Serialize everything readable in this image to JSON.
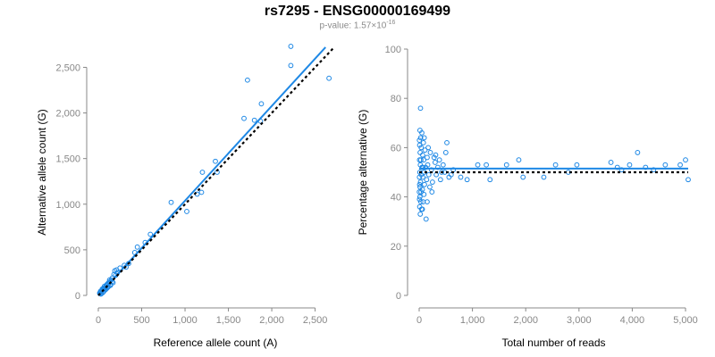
{
  "title": "rs7295 - ENSG00000169499",
  "subtitle": {
    "prefix": "p-value: 1.57×10",
    "exponent": "-16"
  },
  "colors": {
    "point": "#1E88E5",
    "fit_line": "#1E88E5",
    "reference_line": "#000000",
    "tick_label": "#888888",
    "axis": "#888888"
  },
  "chart_data": [
    {
      "type": "scatter",
      "xlabel": "Reference allele count (A)",
      "ylabel": "Alternative allele count (G)",
      "xlim": [
        0,
        2700
      ],
      "ylim": [
        0,
        2700
      ],
      "xticks": [
        0,
        500,
        1000,
        1500,
        2000,
        2500
      ],
      "xtick_labels": [
        "0",
        "500",
        "1,000",
        "1,500",
        "2,000",
        "2,500"
      ],
      "yticks": [
        0,
        500,
        1000,
        1500,
        2000,
        2500
      ],
      "ytick_labels": [
        "0",
        "500",
        "1,000",
        "1,500",
        "2,000",
        "2,500"
      ],
      "points": [
        [
          2220,
          2730
        ],
        [
          2220,
          2520
        ],
        [
          2660,
          2380
        ],
        [
          1720,
          2360
        ],
        [
          1880,
          2100
        ],
        [
          1680,
          1940
        ],
        [
          1800,
          1920
        ],
        [
          1870,
          1910
        ],
        [
          1350,
          1470
        ],
        [
          1370,
          1350
        ],
        [
          1200,
          1350
        ],
        [
          1190,
          1130
        ],
        [
          1140,
          1110
        ],
        [
          1020,
          920
        ],
        [
          840,
          1020
        ],
        [
          600,
          670
        ],
        [
          540,
          580
        ],
        [
          450,
          530
        ],
        [
          420,
          470
        ],
        [
          350,
          350
        ],
        [
          320,
          310
        ],
        [
          300,
          330
        ],
        [
          250,
          300
        ],
        [
          210,
          280
        ],
        [
          190,
          270
        ],
        [
          220,
          250
        ],
        [
          180,
          230
        ],
        [
          160,
          190
        ],
        [
          150,
          170
        ],
        [
          130,
          150
        ],
        [
          140,
          120
        ],
        [
          110,
          130
        ],
        [
          120,
          100
        ],
        [
          90,
          110
        ],
        [
          100,
          80
        ],
        [
          80,
          90
        ],
        [
          70,
          70
        ],
        [
          60,
          80
        ],
        [
          50,
          60
        ],
        [
          40,
          50
        ],
        [
          30,
          40
        ],
        [
          20,
          30
        ],
        [
          60,
          40
        ],
        [
          80,
          60
        ],
        [
          100,
          120
        ],
        [
          120,
          140
        ],
        [
          140,
          110
        ],
        [
          160,
          150
        ],
        [
          90,
          70
        ],
        [
          50,
          30
        ],
        [
          35,
          20
        ],
        [
          25,
          45
        ],
        [
          70,
          100
        ],
        [
          45,
          70
        ],
        [
          130,
          170
        ],
        [
          170,
          140
        ],
        [
          110,
          90
        ],
        [
          200,
          220
        ],
        [
          30,
          15
        ],
        [
          15,
          25
        ]
      ],
      "series": [
        {
          "kind": "fit",
          "x": [
            0,
            2620
          ],
          "y": [
            0,
            2720
          ]
        },
        {
          "kind": "reference",
          "x": [
            0,
            2720
          ],
          "y": [
            0,
            2720
          ]
        }
      ]
    },
    {
      "type": "scatter",
      "xlabel": "Total number of reads",
      "ylabel": "Percentage alternative (G)",
      "xlim": [
        0,
        5050
      ],
      "ylim": [
        0,
        100
      ],
      "xticks": [
        0,
        1000,
        2000,
        3000,
        4000,
        5000
      ],
      "xtick_labels": [
        "0",
        "1,000",
        "2,000",
        "3,000",
        "4,000",
        "5,000"
      ],
      "yticks": [
        0,
        20,
        40,
        60,
        80,
        100
      ],
      "ytick_labels": [
        "0",
        "20",
        "40",
        "60",
        "80",
        "100"
      ],
      "points": [
        [
          5000,
          55
        ],
        [
          5050,
          47
        ],
        [
          4900,
          53
        ],
        [
          4620,
          53
        ],
        [
          4400,
          51
        ],
        [
          4250,
          52
        ],
        [
          4100,
          58
        ],
        [
          3950,
          53
        ],
        [
          3800,
          51
        ],
        [
          3720,
          52
        ],
        [
          3600,
          54
        ],
        [
          2960,
          53
        ],
        [
          2800,
          50
        ],
        [
          2560,
          53
        ],
        [
          2340,
          48
        ],
        [
          1950,
          48
        ],
        [
          1870,
          55
        ],
        [
          1640,
          53
        ],
        [
          1330,
          47
        ],
        [
          1260,
          53
        ],
        [
          1100,
          53
        ],
        [
          900,
          47
        ],
        [
          780,
          48
        ],
        [
          640,
          51
        ],
        [
          600,
          49
        ],
        [
          560,
          48
        ],
        [
          520,
          62
        ],
        [
          500,
          58
        ],
        [
          480,
          50
        ],
        [
          450,
          53
        ],
        [
          400,
          47
        ],
        [
          380,
          55
        ],
        [
          350,
          52
        ],
        [
          320,
          49
        ],
        [
          300,
          54
        ],
        [
          280,
          56
        ],
        [
          250,
          46
        ],
        [
          230,
          51
        ],
        [
          210,
          58
        ],
        [
          200,
          44
        ],
        [
          180,
          49
        ],
        [
          160,
          53
        ],
        [
          150,
          56
        ],
        [
          140,
          47
        ],
        [
          120,
          52
        ],
        [
          110,
          59
        ],
        [
          100,
          45
        ],
        [
          95,
          50
        ],
        [
          90,
          41
        ],
        [
          85,
          55
        ],
        [
          80,
          62
        ],
        [
          75,
          38
        ],
        [
          70,
          48
        ],
        [
          65,
          57
        ],
        [
          60,
          43
        ],
        [
          55,
          52
        ],
        [
          50,
          66
        ],
        [
          45,
          35
        ],
        [
          40,
          49
        ],
        [
          38,
          60
        ],
        [
          35,
          42
        ],
        [
          32,
          55
        ],
        [
          30,
          38
        ],
        [
          28,
          64
        ],
        [
          25,
          46
        ],
        [
          22,
          53
        ],
        [
          20,
          33
        ],
        [
          18,
          58
        ],
        [
          16,
          44
        ],
        [
          15,
          67
        ],
        [
          14,
          40
        ],
        [
          12,
          50
        ],
        [
          10,
          36
        ],
        [
          9,
          61
        ],
        [
          8,
          45
        ],
        [
          7,
          55
        ],
        [
          6,
          39
        ],
        [
          5,
          48
        ],
        [
          4,
          63
        ],
        [
          3,
          42
        ],
        [
          25,
          76
        ],
        [
          130,
          31
        ],
        [
          60,
          35
        ],
        [
          170,
          60
        ],
        [
          240,
          42
        ],
        [
          310,
          57
        ],
        [
          420,
          50
        ],
        [
          95,
          64
        ],
        [
          150,
          38
        ],
        [
          70,
          52
        ]
      ],
      "series": [
        {
          "kind": "fit",
          "x": [
            0,
            5050
          ],
          "y": [
            51.5,
            51.5
          ]
        },
        {
          "kind": "reference",
          "x": [
            0,
            5050
          ],
          "y": [
            50,
            50
          ]
        }
      ]
    }
  ]
}
